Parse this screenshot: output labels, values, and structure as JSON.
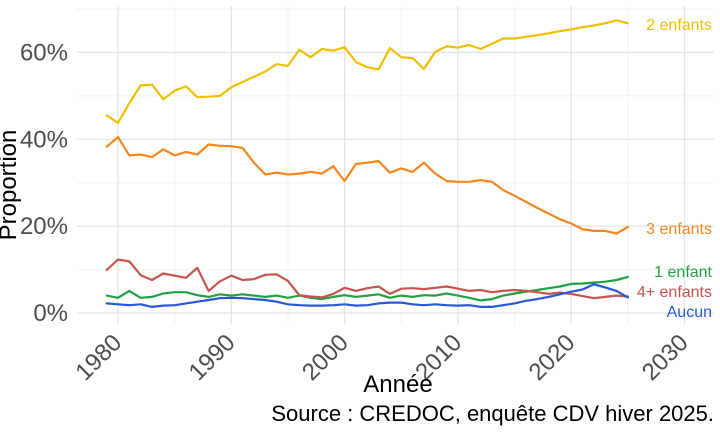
{
  "figure": {
    "y_axis_title": "Proportion",
    "x_axis_title": "Année",
    "caption": "Source : CREDOC, enquête CDV hiver 2025.",
    "colors": {
      "axis_text": "#4d4d4d",
      "title_text": "#000000",
      "grid_major": "#e4e4e4",
      "grid_minor": "#f2f2f2",
      "background": "#ffffff"
    }
  },
  "chart_data": {
    "type": "line",
    "title": "",
    "xlabel": "Année",
    "ylabel": "Proportion",
    "caption": "Source : CREDOC, enquête CDV hiver 2025.",
    "grid": true,
    "legend": "direct labels at right end of lines",
    "xlim": [
      1976.5,
      2032
    ],
    "ylim": [
      0,
      70.5
    ],
    "x_ticks": [
      {
        "v": 1980,
        "label": "1980"
      },
      {
        "v": 1990,
        "label": "1990"
      },
      {
        "v": 2000,
        "label": "2000"
      },
      {
        "v": 2010,
        "label": "2010"
      },
      {
        "v": 2020,
        "label": "2020"
      },
      {
        "v": 2030,
        "label": "2030"
      }
    ],
    "y_ticks": [
      {
        "v": 0,
        "label": "0%"
      },
      {
        "v": 20,
        "label": "20%"
      },
      {
        "v": 40,
        "label": "40%"
      },
      {
        "v": 60,
        "label": "60%"
      }
    ],
    "x_minor_ticks": [
      1985,
      1995,
      2005,
      2015,
      2025
    ],
    "y_minor_ticks": [
      10,
      30,
      50,
      70
    ],
    "x": [
      1979,
      1980,
      1981,
      1982,
      1983,
      1984,
      1985,
      1986,
      1987,
      1988,
      1989,
      1990,
      1991,
      1992,
      1993,
      1994,
      1995,
      1996,
      1997,
      1998,
      1999,
      2000,
      2001,
      2002,
      2003,
      2004,
      2005,
      2006,
      2007,
      2008,
      2009,
      2010,
      2011,
      2012,
      2013,
      2014,
      2015,
      2016,
      2017,
      2018,
      2019,
      2020,
      2021,
      2022,
      2023,
      2024,
      2025
    ],
    "series": [
      {
        "name": "2 enfants",
        "color": "#efc000",
        "values": [
          45.5,
          43.8,
          48.3,
          52.4,
          52.6,
          49.2,
          51.2,
          52.2,
          49.7,
          49.8,
          50.0,
          52.0,
          53.2,
          54.4,
          55.6,
          57.3,
          56.9,
          60.6,
          58.9,
          60.8,
          60.4,
          61.2,
          57.8,
          56.6,
          56.1,
          61.0,
          58.9,
          58.7,
          56.2,
          60.1,
          61.4,
          61.1,
          61.7,
          60.8,
          62.0,
          63.2,
          63.2,
          63.6,
          64.0,
          64.4,
          64.9,
          65.3,
          65.8,
          66.2,
          66.7,
          67.4,
          66.7
        ]
      },
      {
        "name": "3 enfants",
        "color": "#f8861e",
        "values": [
          38.3,
          40.5,
          36.3,
          36.5,
          35.9,
          37.7,
          36.3,
          37.1,
          36.5,
          38.8,
          38.5,
          38.4,
          38.0,
          34.6,
          31.9,
          32.3,
          31.9,
          32.1,
          32.5,
          32.1,
          33.8,
          30.4,
          34.3,
          34.6,
          35.0,
          32.3,
          33.3,
          32.5,
          34.6,
          32.1,
          30.4,
          30.2,
          30.2,
          30.6,
          30.2,
          28.3,
          27.0,
          25.6,
          24.2,
          22.9,
          21.6,
          20.6,
          19.3,
          18.9,
          18.9,
          18.3,
          19.8
        ]
      },
      {
        "name": "1 enfant",
        "color": "#22a044",
        "values": [
          4.0,
          3.5,
          5.1,
          3.5,
          3.7,
          4.5,
          4.8,
          4.8,
          4.1,
          3.7,
          4.3,
          4.0,
          4.3,
          4.0,
          3.7,
          4.0,
          3.5,
          4.0,
          3.5,
          3.2,
          3.7,
          4.1,
          3.7,
          4.0,
          4.3,
          3.5,
          4.0,
          3.7,
          4.1,
          4.0,
          4.5,
          4.0,
          3.5,
          2.9,
          3.2,
          4.0,
          4.5,
          4.9,
          5.3,
          5.7,
          6.1,
          6.7,
          6.8,
          7.0,
          7.2,
          7.6,
          8.3
        ]
      },
      {
        "name": "4+ enfants",
        "color": "#c5544c",
        "values": [
          9.9,
          12.3,
          11.9,
          8.7,
          7.6,
          9.1,
          8.6,
          8.1,
          10.4,
          5.1,
          7.3,
          8.6,
          7.6,
          7.8,
          8.8,
          8.9,
          7.4,
          4.1,
          3.8,
          3.6,
          4.4,
          5.8,
          5.1,
          5.7,
          6.1,
          4.4,
          5.6,
          5.7,
          5.5,
          5.8,
          6.1,
          5.6,
          5.1,
          5.3,
          4.8,
          5.1,
          5.3,
          5.1,
          4.8,
          4.4,
          4.7,
          4.4,
          3.9,
          3.4,
          3.7,
          4.0,
          3.8
        ]
      },
      {
        "name": "Aucun",
        "color": "#2858d8",
        "values": [
          2.2,
          2.0,
          1.8,
          2.0,
          1.4,
          1.7,
          1.8,
          2.2,
          2.6,
          3.0,
          3.4,
          3.5,
          3.4,
          3.2,
          3.0,
          2.6,
          2.0,
          1.8,
          1.7,
          1.7,
          1.8,
          2.0,
          1.7,
          1.8,
          2.2,
          2.4,
          2.4,
          2.0,
          1.8,
          2.0,
          1.8,
          1.7,
          1.8,
          1.4,
          1.4,
          1.8,
          2.2,
          2.8,
          3.2,
          3.7,
          4.3,
          4.9,
          5.4,
          6.6,
          5.9,
          5.1,
          3.6
        ]
      }
    ]
  }
}
